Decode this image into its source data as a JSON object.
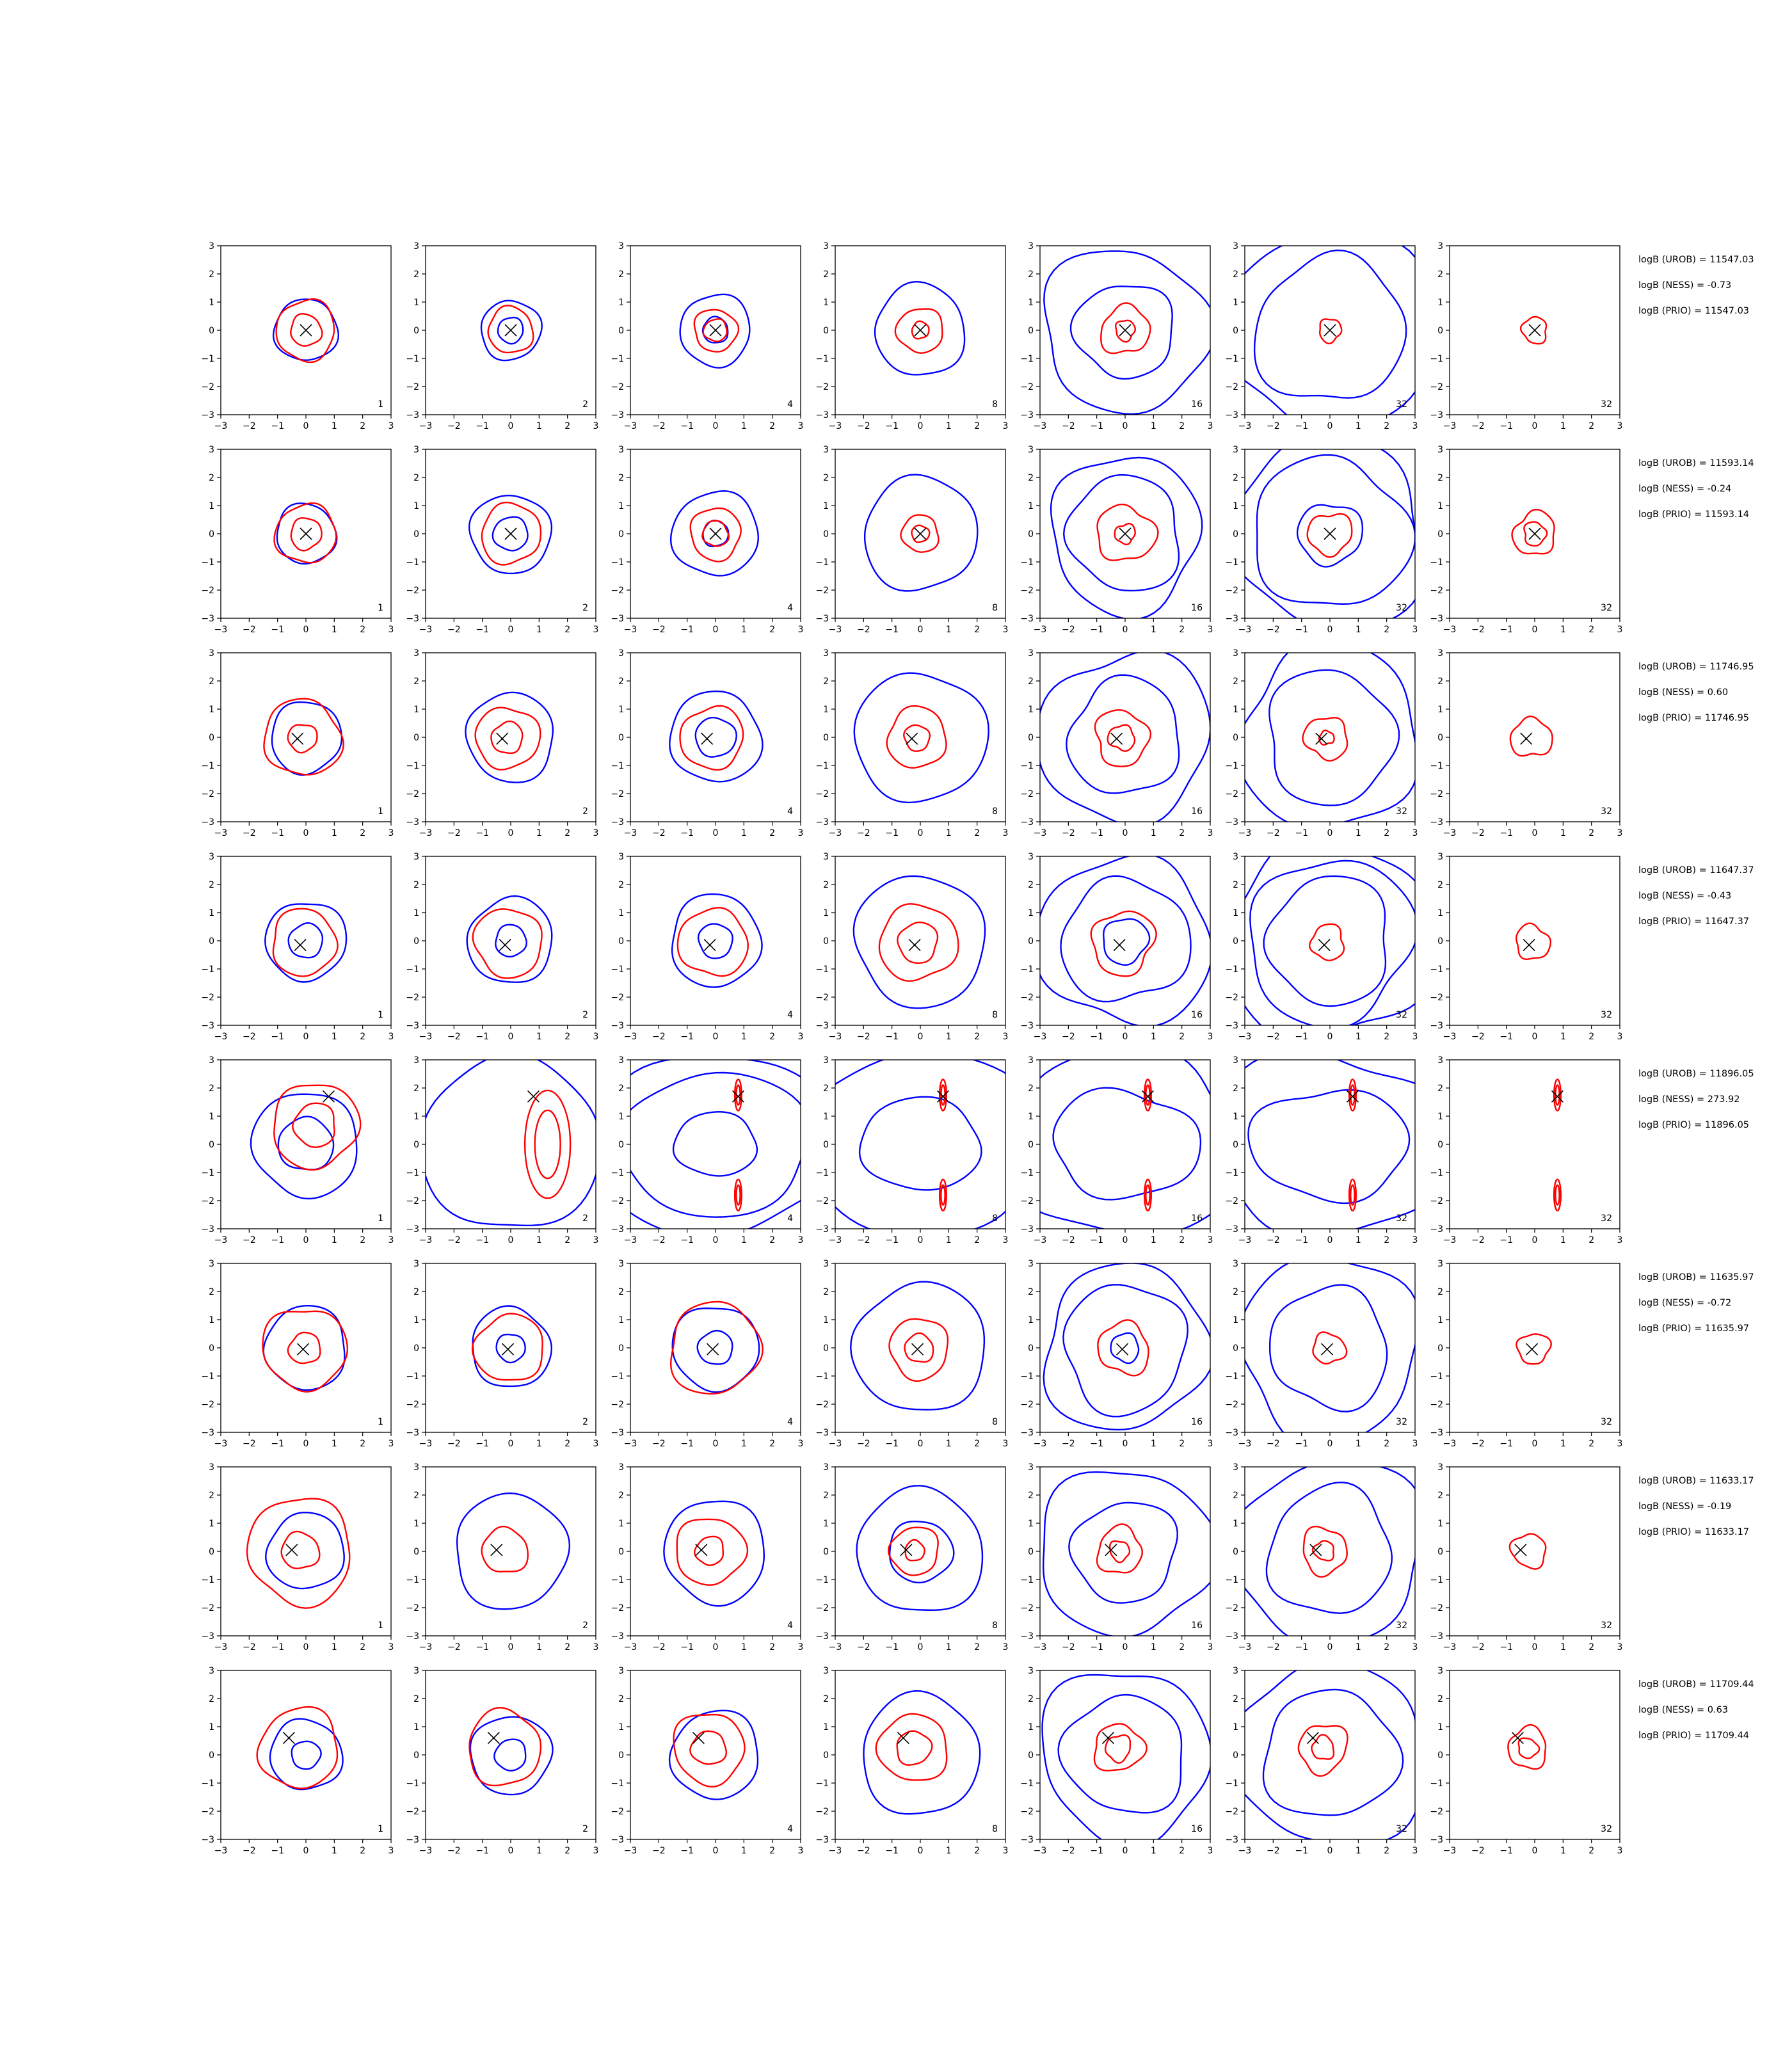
{
  "chart_data": {
    "type": "contour-grid",
    "axes": {
      "xlim": [
        -3,
        3
      ],
      "ylim": [
        -3,
        3
      ],
      "ticks": [
        -3,
        -2,
        -1,
        0,
        1,
        2,
        3
      ],
      "grid": false
    },
    "colors": {
      "blue": "#0000ff",
      "red": "#ff0000",
      "marker": "#000000"
    },
    "column_labels": [
      "1",
      "2",
      "4",
      "8",
      "16",
      "32",
      "32"
    ],
    "rows": [
      {
        "marker": [
          0.0,
          0.0
        ],
        "stats": [
          "logB (UROB) = 11547.03",
          "logB (NESS) = -0.73",
          "logB (PRIO) = 11547.03"
        ],
        "panels": [
          {
            "blue": [
              1.1
            ],
            "red": [
              1.05,
              0.55
            ]
          },
          {
            "blue": [
              1.05,
              0.45
            ],
            "red": [
              0.8
            ]
          },
          {
            "blue": [
              1.25,
              0.45
            ],
            "red": [
              0.75,
              0.4
            ]
          },
          {
            "blue": [
              1.6
            ],
            "red": [
              0.8,
              0.3
            ]
          },
          {
            "blue": [
              2.9,
              1.7
            ],
            "red": [
              0.85,
              0.35
            ]
          },
          {
            "blue": [
              3.6,
              2.6
            ],
            "red": [
              0.4
            ]
          },
          {
            "blue": [],
            "red": [
              0.45
            ]
          }
        ]
      },
      {
        "marker": [
          0.0,
          0.0
        ],
        "stats": [
          "logB (UROB) = 11593.14",
          "logB (NESS) = -0.24",
          "logB (PRIO) = 11593.14"
        ],
        "panels": [
          {
            "blue": [
              1.05
            ],
            "red": [
              1.05,
              0.55
            ]
          },
          {
            "blue": [
              1.4,
              0.6
            ],
            "red": [
              1.05
            ]
          },
          {
            "blue": [
              1.5,
              0.45
            ],
            "red": [
              0.9,
              0.45
            ]
          },
          {
            "blue": [
              2.0
            ],
            "red": [
              0.65,
              0.3
            ]
          },
          {
            "blue": [
              2.7,
              2.0
            ],
            "red": [
              1.0,
              0.35
            ]
          },
          {
            "blue": [
              3.4,
              2.7,
              1.1
            ],
            "red": [
              0.75
            ]
          },
          {
            "blue": [],
            "red": [
              0.75,
              0.4
            ]
          }
        ]
      },
      {
        "marker": [
          -0.3,
          -0.05
        ],
        "stats": [
          "logB (UROB) = 11746.95",
          "logB (NESS) = 0.60",
          "logB (PRIO) = 11746.95"
        ],
        "panels": [
          {
            "blue": [
              1.25
            ],
            "red": [
              1.35,
              0.5
            ]
          },
          {
            "blue": [
              1.55
            ],
            "red": [
              1.1,
              0.55
            ]
          },
          {
            "blue": [
              1.6,
              0.7
            ],
            "red": [
              1.1
            ]
          },
          {
            "blue": [
              2.3
            ],
            "red": [
              1.05,
              0.45
            ]
          },
          {
            "blue": [
              3.0,
              2.0
            ],
            "red": [
              0.95,
              0.45
            ]
          },
          {
            "blue": [
              3.2,
              2.3
            ],
            "red": [
              0.75,
              0.25
            ]
          },
          {
            "blue": [],
            "red": [
              0.7
            ]
          }
        ]
      },
      {
        "marker": [
          -0.2,
          -0.15
        ],
        "stats": [
          "logB (UROB) = 11647.37",
          "logB (NESS) = -0.43",
          "logB (PRIO) = 11647.37"
        ],
        "panels": [
          {
            "blue": [
              1.4,
              0.6
            ],
            "red": [
              1.15
            ]
          },
          {
            "blue": [
              1.5,
              0.55
            ],
            "red": [
              1.2
            ]
          },
          {
            "blue": [
              1.6,
              0.6
            ],
            "red": [
              1.2
            ]
          },
          {
            "blue": [
              2.3
            ],
            "red": [
              1.35,
              0.7
            ]
          },
          {
            "blue": [
              3.0,
              2.2,
              0.8
            ],
            "red": [
              1.1
            ]
          },
          {
            "blue": [
              3.6,
              2.9,
              2.2
            ],
            "red": [
              0.6
            ]
          },
          {
            "blue": [],
            "red": [
              0.6
            ]
          }
        ]
      },
      {
        "marker": [
          0.8,
          1.7
        ],
        "stats": [
          "logB (UROB) = 11896.05",
          "logB (NESS) = 273.92",
          "logB (PRIO) = 11896.05"
        ],
        "panels": [
          {
            "blue": [
              1.85,
              0.95
            ],
            "red": [
              1.5,
              0.75
            ]
          },
          {
            "blue": [
              3.1
            ],
            "red": []
          },
          {
            "blue": [
              3.2,
              2.5,
              1.1
            ],
            "red": []
          },
          {
            "blue": [
              3.2,
              1.6
            ],
            "red": []
          },
          {
            "blue": [
              3.2,
              1.9
            ],
            "red": []
          },
          {
            "blue": [
              3.2,
              2.0
            ],
            "red": []
          },
          {
            "blue": [],
            "red": []
          }
        ]
      },
      {
        "marker": [
          -0.1,
          -0.05
        ],
        "stats": [
          "logB (UROB) = 11635.97",
          "logB (NESS) = -0.72",
          "logB (PRIO) = 11635.97"
        ],
        "panels": [
          {
            "blue": [
              1.45
            ],
            "red": [
              1.45,
              0.55
            ]
          },
          {
            "blue": [
              1.4,
              0.5
            ],
            "red": [
              1.2
            ]
          },
          {
            "blue": [
              1.5,
              0.6
            ],
            "red": [
              1.6
            ]
          },
          {
            "blue": [
              2.3
            ],
            "red": [
              1.05,
              0.5
            ]
          },
          {
            "blue": [
              2.9,
              2.2,
              0.5
            ],
            "red": [
              0.9
            ]
          },
          {
            "blue": [
              3.2,
              2.1
            ],
            "red": [
              0.55
            ]
          },
          {
            "blue": [],
            "red": [
              0.55
            ]
          }
        ]
      },
      {
        "marker": [
          -0.5,
          0.05
        ],
        "stats": [
          "logB (UROB) = 11633.17",
          "logB (NESS) = -0.19",
          "logB (PRIO) = 11633.17"
        ],
        "panels": [
          {
            "blue": [
              1.35
            ],
            "red": [
              1.85,
              0.65
            ]
          },
          {
            "blue": [
              2.0
            ],
            "red": [
              0.8
            ]
          },
          {
            "blue": [
              1.8
            ],
            "red": [
              1.2,
              0.5
            ]
          },
          {
            "blue": [
              2.2,
              1.1
            ],
            "red": [
              0.85,
              0.35
            ]
          },
          {
            "blue": [
              3.0,
              1.8
            ],
            "red": [
              0.8,
              0.35
            ]
          },
          {
            "blue": [
              3.3,
              2.2
            ],
            "red": [
              0.8,
              0.35
            ]
          },
          {
            "blue": [],
            "red": [
              0.6
            ]
          }
        ]
      },
      {
        "marker": [
          -0.6,
          0.6
        ],
        "stats": [
          "logB (UROB) = 11709.44",
          "logB (NESS) = 0.63",
          "logB (PRIO) = 11709.44"
        ],
        "panels": [
          {
            "blue": [
              1.25,
              0.5
            ],
            "red": [
              1.4
            ]
          },
          {
            "blue": [
              1.4,
              0.55
            ],
            "red": [
              1.3
            ]
          },
          {
            "blue": [
              1.55
            ],
            "red": [
              1.25,
              0.6
            ]
          },
          {
            "blue": [
              2.1
            ],
            "red": [
              1.2,
              0.6
            ]
          },
          {
            "blue": [
              3.0,
              2.1
            ],
            "red": [
              0.85,
              0.45
            ]
          },
          {
            "blue": [
              3.3,
              2.3
            ],
            "red": [
              0.85,
              0.4
            ]
          },
          {
            "blue": [],
            "red": [
              0.7,
              0.35
            ]
          }
        ]
      }
    ]
  }
}
